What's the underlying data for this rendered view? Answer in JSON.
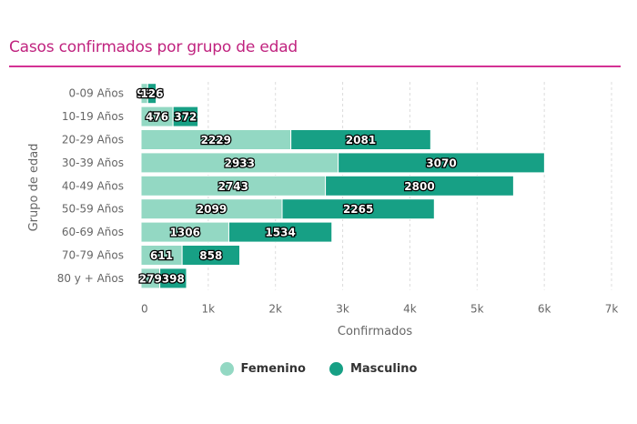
{
  "title": "Casos confirmados por grupo de edad",
  "colors": {
    "title": "#c0237f",
    "femenino": "#93d8c3",
    "masculino": "#17a085"
  },
  "chart_data": {
    "type": "bar",
    "orientation": "horizontal",
    "stacked": true,
    "title": "Casos confirmados por grupo de edad",
    "xlabel": "Confirmados",
    "ylabel": "Grupo de edad",
    "categories": [
      "0-09 Años",
      "10-19 Años",
      "20-29 Años",
      "30-39 Años",
      "40-49 Años",
      "50-59 Años",
      "60-69 Años",
      "70-79 Años",
      "80 y + Años"
    ],
    "series": [
      {
        "name": "Femenino",
        "values": [
          99,
          476,
          2229,
          2933,
          2743,
          2099,
          1306,
          611,
          279
        ]
      },
      {
        "name": "Masculino",
        "values": [
          126,
          372,
          2081,
          3070,
          2800,
          2265,
          1534,
          858,
          398
        ]
      }
    ],
    "xlim": [
      0,
      7000
    ],
    "xticks": [
      "0",
      "1k",
      "2k",
      "3k",
      "4k",
      "5k",
      "6k",
      "7k"
    ],
    "xtick_values": [
      0,
      1000,
      2000,
      3000,
      4000,
      5000,
      6000,
      7000
    ],
    "grid": true,
    "legend_position": "bottom-center"
  },
  "legend": [
    {
      "label": "Femenino"
    },
    {
      "label": "Masculino"
    }
  ]
}
